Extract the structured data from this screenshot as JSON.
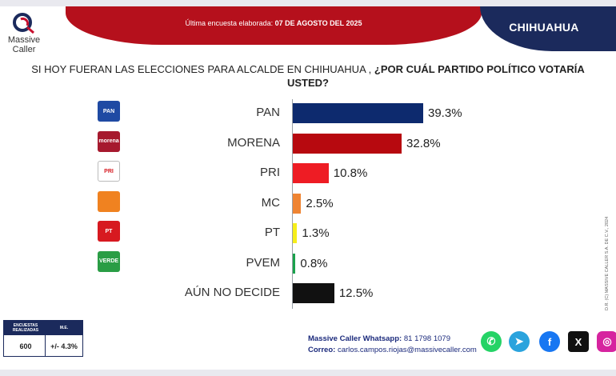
{
  "header": {
    "banner_prefix": "Última encuesta elaborada: ",
    "banner_date": "07 DE AGOSTO DEL 2025",
    "state": "CHIHUAHUA"
  },
  "logo": {
    "line1": "Massive",
    "line2": "Caller"
  },
  "question": {
    "plain": "SI HOY FUERAN LAS ELECCIONES PARA ALCALDE EN CHIHUAHUA , ",
    "bold": "¿POR CUÁL PARTIDO POLÍTICO VOTARÍA USTED?"
  },
  "side_note": "D.R. (C) MASSIVE CALLER S.A. DE C.V., 2024",
  "chart_data": {
    "type": "bar",
    "orientation": "horizontal",
    "categories": [
      "PAN",
      "MORENA",
      "PRI",
      "MC",
      "PT",
      "PVEM",
      "AÚN NO DECIDE"
    ],
    "values": [
      39.3,
      32.8,
      10.8,
      2.5,
      1.3,
      0.8,
      12.5
    ],
    "value_labels": [
      "39.3%",
      "32.8%",
      "10.8%",
      "2.5%",
      "1.3%",
      "0.8%",
      "12.5%"
    ],
    "colors": [
      "#0d2a6e",
      "#b7090f",
      "#ee1c24",
      "#ef8433",
      "#f6ee1a",
      "#1aa14c",
      "#111111"
    ],
    "icons": [
      {
        "name": "pan-logo-icon",
        "text": "PAN",
        "bg": "#1f4aa3"
      },
      {
        "name": "morena-logo-icon",
        "text": "morena",
        "bg": "#a6192e"
      },
      {
        "name": "pri-logo-icon",
        "text": "PRI",
        "bg": "#ffffff"
      },
      {
        "name": "mc-logo-icon",
        "text": "",
        "bg": "#f08220"
      },
      {
        "name": "pt-logo-icon",
        "text": "PT",
        "bg": "#d71920"
      },
      {
        "name": "pvem-logo-icon",
        "text": "VERDE",
        "bg": "#2a9d45"
      },
      {
        "name": "",
        "text": "",
        "bg": ""
      }
    ],
    "title": "",
    "xlabel": "",
    "ylabel": "",
    "xlim": [
      0,
      39.3
    ],
    "grid": false,
    "legend": "none"
  },
  "stats": {
    "h1": "ENCUESTAS REALIZADAS",
    "h2": "M.E.",
    "v1": "600",
    "v2": "+/- 4.3%"
  },
  "contact": {
    "whatsapp_label": "Massive Caller Whatsapp:",
    "whatsapp_value": " 81 1798 1079",
    "email_label": "Correo:",
    "email_value": " carlos.campos.riojas@massivecaller.com"
  },
  "social": [
    {
      "name": "whatsapp-icon",
      "glyph": "✆",
      "color": "#25d366"
    },
    {
      "name": "telegram-icon",
      "glyph": "➤",
      "color": "#2aa3dd"
    },
    {
      "name": "facebook-icon",
      "glyph": "f",
      "color": "#1877f2"
    },
    {
      "name": "x-icon",
      "glyph": "X",
      "color": "#111111"
    },
    {
      "name": "instagram-icon",
      "glyph": "◎",
      "color": "#d6249f"
    }
  ]
}
